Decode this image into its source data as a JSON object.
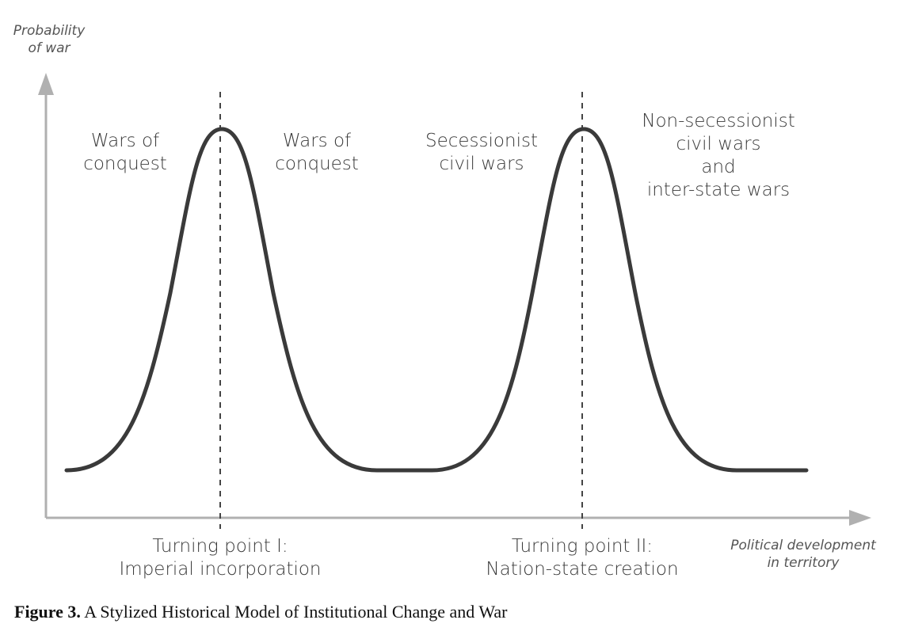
{
  "axes": {
    "y_label_lines": [
      "Probability",
      "of war"
    ],
    "x_label_lines": [
      "Political development",
      "in territory"
    ]
  },
  "regions": {
    "r1": [
      "Wars of",
      "conquest"
    ],
    "r2": [
      "Wars of",
      "conquest"
    ],
    "r3": [
      "Secessionist",
      "civil wars"
    ],
    "r4": [
      "Non-secessionist",
      "civil wars",
      "and",
      "inter-state wars"
    ]
  },
  "turning_points": {
    "tp1": [
      "Turning point I:",
      "Imperial incorporation"
    ],
    "tp2": [
      "Turning point II:",
      "Nation-state creation"
    ]
  },
  "caption": {
    "figure_number": "Figure 3.",
    "text": "A Stylized Historical Model of Institutional Change and War"
  },
  "colors": {
    "curve": "#3a3a3a",
    "axis": "#b0b0b0",
    "dashed": "#444444",
    "text": "#3a3a3a"
  }
}
